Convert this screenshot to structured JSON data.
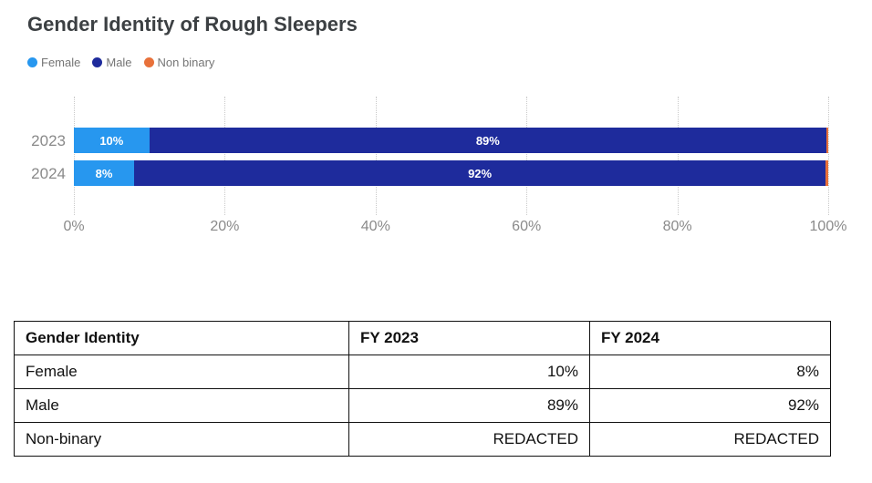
{
  "chart": {
    "title": "Gender Identity of Rough Sleepers",
    "legend": [
      {
        "label": "Female",
        "color": "#2797ef"
      },
      {
        "label": "Male",
        "color": "#1e2b9c"
      },
      {
        "label": "Non binary",
        "color": "#e8713a"
      }
    ]
  },
  "chart_data": {
    "type": "bar",
    "orientation": "horizontal",
    "stacked": true,
    "title": "Gender Identity of Rough Sleepers",
    "categories": [
      "2023",
      "2024"
    ],
    "series": [
      {
        "name": "Female",
        "color": "#2797ef",
        "values": [
          10,
          8
        ]
      },
      {
        "name": "Male",
        "color": "#1e2b9c",
        "values": [
          89,
          92
        ]
      },
      {
        "name": "Non binary",
        "color": "#e8713a",
        "values": [
          "REDACTED",
          "REDACTED"
        ]
      }
    ],
    "x_axis": {
      "ticks": [
        "0%",
        "20%",
        "40%",
        "60%",
        "80%",
        "100%"
      ],
      "range": [
        0,
        100
      ]
    },
    "value_label_suffix": "%",
    "grid": "dotted-vertical",
    "legend_position": "top-left"
  },
  "table": {
    "headers": [
      "Gender Identity",
      "FY 2023",
      "FY 2024"
    ],
    "rows": [
      [
        "Female",
        "10%",
        "8%"
      ],
      [
        "Male",
        "89%",
        "92%"
      ],
      [
        "Non-binary",
        "REDACTED",
        "REDACTED"
      ]
    ]
  }
}
